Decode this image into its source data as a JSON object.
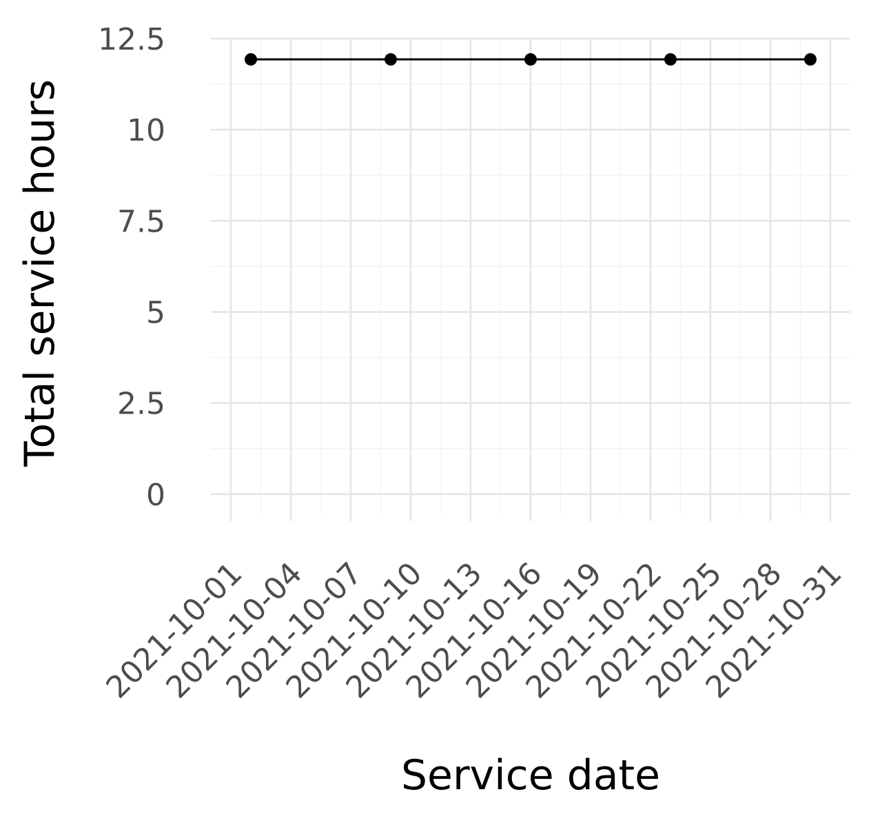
{
  "chart_data": {
    "type": "line",
    "title": "",
    "xlabel": "Service date",
    "ylabel": "Total service hours",
    "x_tick_labels": [
      "2021-10-01",
      "2021-10-04",
      "2021-10-07",
      "2021-10-10",
      "2021-10-13",
      "2021-10-16",
      "2021-10-19",
      "2021-10-22",
      "2021-10-25",
      "2021-10-28",
      "2021-10-31"
    ],
    "x_tick_values": [
      "2021-10-01",
      "2021-10-04",
      "2021-10-07",
      "2021-10-10",
      "2021-10-13",
      "2021-10-16",
      "2021-10-19",
      "2021-10-22",
      "2021-10-25",
      "2021-10-28",
      "2021-10-31"
    ],
    "y_tick_labels": [
      "0",
      "2.5",
      "5",
      "7.5",
      "10",
      "12.5"
    ],
    "y_tick_values": [
      0,
      2.5,
      5,
      7.5,
      10,
      12.5
    ],
    "xlim": [
      "2021-09-30",
      "2021-11-01"
    ],
    "ylim": [
      -0.55,
      12.5
    ],
    "grid": true,
    "legend": "none",
    "series": [
      {
        "x": [
          "2021-10-02",
          "2021-10-09",
          "2021-10-16",
          "2021-10-23",
          "2021-10-30"
        ],
        "values": [
          11.93,
          11.93,
          11.93,
          11.93,
          11.93
        ]
      }
    ],
    "colors": {
      "line": "#000000",
      "point": "#000000",
      "grid_major": "#e5e5e5",
      "grid_minor": "#f4f4f4",
      "tick_text": "#4d4d4d",
      "title_text": "#000000"
    }
  }
}
